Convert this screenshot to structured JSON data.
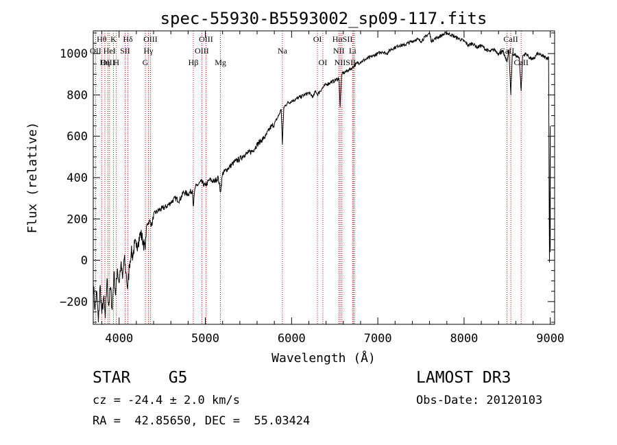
{
  "chart_data": {
    "type": "line",
    "title": "spec-55930-B5593002_sp09-117.fits",
    "xlabel": "Wavelength (Å)",
    "ylabel": "Flux (relative)",
    "xlim": [
      3700,
      9050
    ],
    "ylim": [
      -310,
      1110
    ],
    "xticks": [
      4000,
      5000,
      6000,
      7000,
      8000,
      9000
    ],
    "yticks": [
      -200,
      0,
      200,
      400,
      600,
      800,
      1000
    ],
    "grid": false,
    "legend": "none",
    "series": [
      {
        "name": "flux",
        "color": "#000000",
        "points": [
          [
            3700,
            -100
          ],
          [
            3720,
            -240
          ],
          [
            3740,
            -150
          ],
          [
            3760,
            -300
          ],
          [
            3780,
            -120
          ],
          [
            3800,
            -260
          ],
          [
            3820,
            -180
          ],
          [
            3840,
            -280
          ],
          [
            3860,
            -90
          ],
          [
            3880,
            -220
          ],
          [
            3900,
            -130
          ],
          [
            3920,
            -240
          ],
          [
            3940,
            -60
          ],
          [
            3960,
            -170
          ],
          [
            3980,
            -40
          ],
          [
            4000,
            -110
          ],
          [
            4020,
            -20
          ],
          [
            4040,
            -90
          ],
          [
            4060,
            10
          ],
          [
            4080,
            -60
          ],
          [
            4100,
            -140
          ],
          [
            4120,
            -20
          ],
          [
            4140,
            40
          ],
          [
            4160,
            20
          ],
          [
            4180,
            80
          ],
          [
            4200,
            60
          ],
          [
            4220,
            90
          ],
          [
            4250,
            130
          ],
          [
            4280,
            90
          ],
          [
            4300,
            50
          ],
          [
            4320,
            170
          ],
          [
            4350,
            190
          ],
          [
            4380,
            170
          ],
          [
            4400,
            220
          ],
          [
            4450,
            240
          ],
          [
            4500,
            250
          ],
          [
            4550,
            260
          ],
          [
            4600,
            280
          ],
          [
            4650,
            300
          ],
          [
            4700,
            290
          ],
          [
            4750,
            330
          ],
          [
            4800,
            320
          ],
          [
            4850,
            340
          ],
          [
            4861,
            260
          ],
          [
            4880,
            350
          ],
          [
            4900,
            360
          ],
          [
            4950,
            380
          ],
          [
            5000,
            360
          ],
          [
            5050,
            390
          ],
          [
            5100,
            380
          ],
          [
            5150,
            400
          ],
          [
            5175,
            330
          ],
          [
            5200,
            420
          ],
          [
            5250,
            440
          ],
          [
            5300,
            460
          ],
          [
            5350,
            480
          ],
          [
            5400,
            490
          ],
          [
            5450,
            510
          ],
          [
            5500,
            520
          ],
          [
            5550,
            530
          ],
          [
            5600,
            560
          ],
          [
            5650,
            580
          ],
          [
            5700,
            600
          ],
          [
            5750,
            640
          ],
          [
            5800,
            660
          ],
          [
            5850,
            700
          ],
          [
            5880,
            730
          ],
          [
            5893,
            560
          ],
          [
            5910,
            740
          ],
          [
            5950,
            760
          ],
          [
            6000,
            770
          ],
          [
            6050,
            780
          ],
          [
            6100,
            790
          ],
          [
            6150,
            800
          ],
          [
            6200,
            810
          ],
          [
            6250,
            790
          ],
          [
            6280,
            820
          ],
          [
            6300,
            800
          ],
          [
            6350,
            830
          ],
          [
            6400,
            850
          ],
          [
            6450,
            860
          ],
          [
            6500,
            870
          ],
          [
            6550,
            880
          ],
          [
            6563,
            740
          ],
          [
            6580,
            900
          ],
          [
            6620,
            910
          ],
          [
            6660,
            920
          ],
          [
            6700,
            930
          ],
          [
            6750,
            950
          ],
          [
            6800,
            960
          ],
          [
            6850,
            970
          ],
          [
            6900,
            980
          ],
          [
            6950,
            990
          ],
          [
            7000,
            1000
          ],
          [
            7050,
            1010
          ],
          [
            7100,
            1000
          ],
          [
            7150,
            1020
          ],
          [
            7200,
            1030
          ],
          [
            7250,
            1040
          ],
          [
            7300,
            1040
          ],
          [
            7350,
            1050
          ],
          [
            7400,
            1060
          ],
          [
            7450,
            1070
          ],
          [
            7500,
            1060
          ],
          [
            7550,
            1080
          ],
          [
            7600,
            1100
          ],
          [
            7620,
            1060
          ],
          [
            7650,
            1070
          ],
          [
            7700,
            1080
          ],
          [
            7750,
            1090
          ],
          [
            7800,
            1100
          ],
          [
            7850,
            1090
          ],
          [
            7900,
            1080
          ],
          [
            7950,
            1070
          ],
          [
            8000,
            1060
          ],
          [
            8050,
            1040
          ],
          [
            8100,
            1050
          ],
          [
            8150,
            1030
          ],
          [
            8200,
            1040
          ],
          [
            8250,
            1020
          ],
          [
            8300,
            1010
          ],
          [
            8350,
            1020
          ],
          [
            8400,
            1000
          ],
          [
            8450,
            1010
          ],
          [
            8498,
            960
          ],
          [
            8520,
            1020
          ],
          [
            8542,
            800
          ],
          [
            8560,
            1000
          ],
          [
            8600,
            990
          ],
          [
            8640,
            980
          ],
          [
            8662,
            820
          ],
          [
            8680,
            990
          ],
          [
            8720,
            1000
          ],
          [
            8760,
            980
          ],
          [
            8800,
            970
          ],
          [
            8850,
            1000
          ],
          [
            8900,
            990
          ],
          [
            8950,
            980
          ],
          [
            8980,
            980
          ],
          [
            8990,
            -10
          ],
          [
            9000,
            650
          ],
          [
            9000,
            40
          ]
        ]
      }
    ],
    "line_markers": [
      {
        "label": "Hθ",
        "x": 3798,
        "row": 0
      },
      {
        "label": "K",
        "x": 3934,
        "row": 0
      },
      {
        "label": "Hδ",
        "x": 4102,
        "row": 0
      },
      {
        "label": "OIII",
        "x": 4363,
        "row": 0
      },
      {
        "label": "OIII",
        "x": 5007,
        "row": 0
      },
      {
        "label": "OI",
        "x": 6300,
        "row": 0
      },
      {
        "label": "HαSII",
        "x": 6590,
        "row": 0
      },
      {
        "label": "CaII",
        "x": 8542,
        "row": 0
      },
      {
        "label": "OII",
        "x": 3727,
        "row": 1
      },
      {
        "label": "HeI",
        "x": 3889,
        "row": 1
      },
      {
        "label": "SII",
        "x": 4069,
        "row": 1
      },
      {
        "label": "Hγ",
        "x": 4340,
        "row": 1
      },
      {
        "label": "OIII",
        "x": 4959,
        "row": 1
      },
      {
        "label": "Na",
        "x": 5893,
        "row": 1
      },
      {
        "label": "NII",
        "x": 6548,
        "row": 1
      },
      {
        "label": "Li",
        "x": 6708,
        "row": 1
      },
      {
        "label": "CaII",
        "x": 8498,
        "row": 1
      },
      {
        "label": "OIII",
        "x": 3869,
        "row": 2
      },
      {
        "label": "Hη",
        "x": 3835,
        "row": 2
      },
      {
        "label": "H",
        "x": 3968,
        "row": 2
      },
      {
        "label": "G",
        "x": 4304,
        "row": 2
      },
      {
        "label": "Hβ",
        "x": 4861,
        "row": 2
      },
      {
        "label": "Mg",
        "x": 5175,
        "row": 2
      },
      {
        "label": "OI",
        "x": 6363,
        "row": 2
      },
      {
        "label": "NIISII",
        "x": 6620,
        "row": 2
      },
      {
        "label": "CaII",
        "x": 8662,
        "row": 2
      }
    ],
    "line_positions": [
      3727,
      3798,
      3835,
      3869,
      3889,
      3934,
      3968,
      4069,
      4102,
      4304,
      4340,
      4363,
      4861,
      4959,
      5007,
      5175,
      5893,
      6300,
      6363,
      6548,
      6563,
      6584,
      6708,
      6716,
      6731,
      8498,
      8542,
      8662
    ],
    "line_color": "#cc0000"
  },
  "info": {
    "object_class": "STAR    G5",
    "survey": "LAMOST DR3",
    "cz": "cz = -24.4 ± 2.0 km/s",
    "obs_date": "Obs-Date: 20120103",
    "radec": "RA =  42.85650, DEC =  55.03424"
  }
}
